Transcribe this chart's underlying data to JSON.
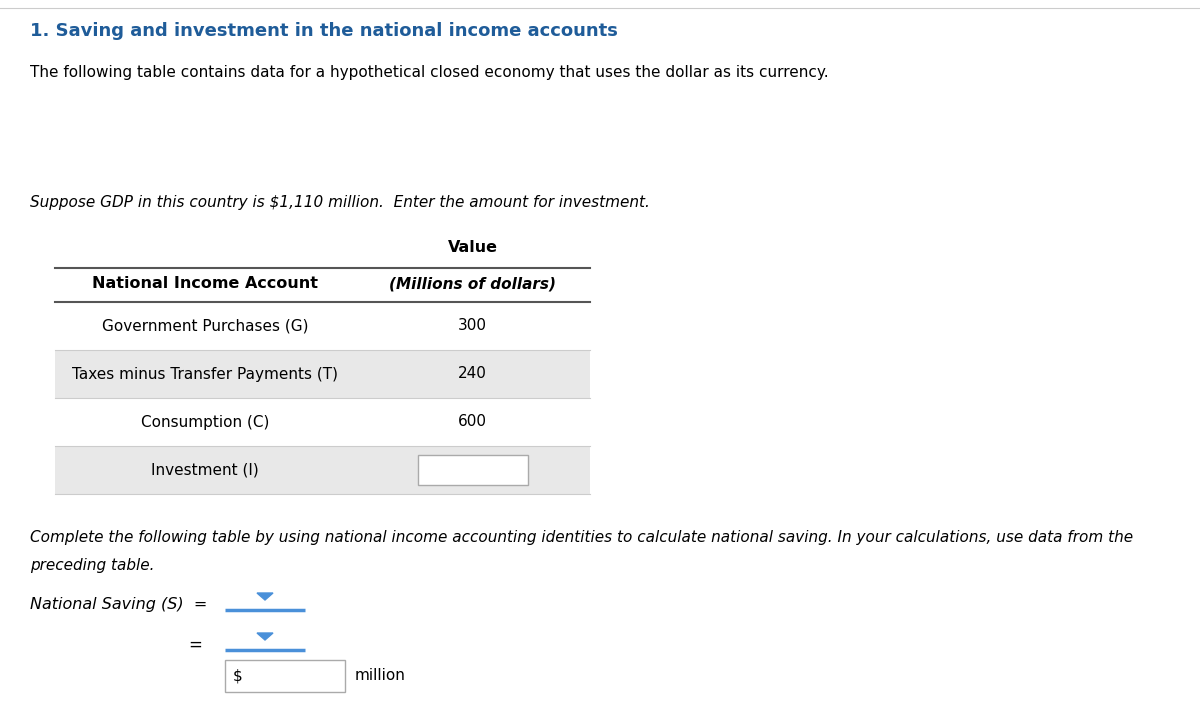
{
  "title": "1. Saving and investment in the national income accounts",
  "intro_text": "The following table contains data for a hypothetical closed economy that uses the dollar as its currency.",
  "suppose_text": "Suppose GDP in this country is $1,110 million.  Enter the amount for investment.",
  "table_header_col1": "National Income Account",
  "table_header_col2_line1": "Value",
  "table_header_col2_line2": "(Millions of dollars)",
  "table_rows": [
    {
      "label": "Government Purchases (G)",
      "value": "300",
      "shaded": false
    },
    {
      "label": "Taxes minus Transfer Payments (T)",
      "value": "240",
      "shaded": true
    },
    {
      "label": "Consumption (C)",
      "value": "600",
      "shaded": false
    },
    {
      "label": "Investment (I)",
      "value": "",
      "shaded": true,
      "input_box": true
    }
  ],
  "complete_text_line1": "Complete the following table by using national income accounting identities to calculate national saving. In your calculations, use data from the",
  "complete_text_line2": "preceding table.",
  "national_saving_label": "National Saving (S)  =",
  "dollar_sign": "$",
  "million_text": "million",
  "title_color": "#1F5C99",
  "table_line_color": "#555555",
  "shaded_row_color": "#E8E8E8",
  "dropdown_line_color": "#4A90D9",
  "dropdown_arrow_color": "#4A90D9",
  "input_box_border": "#AAAAAA",
  "background_color": "#FFFFFF",
  "fig_width": 12.0,
  "fig_height": 7.24,
  "dpi": 100
}
